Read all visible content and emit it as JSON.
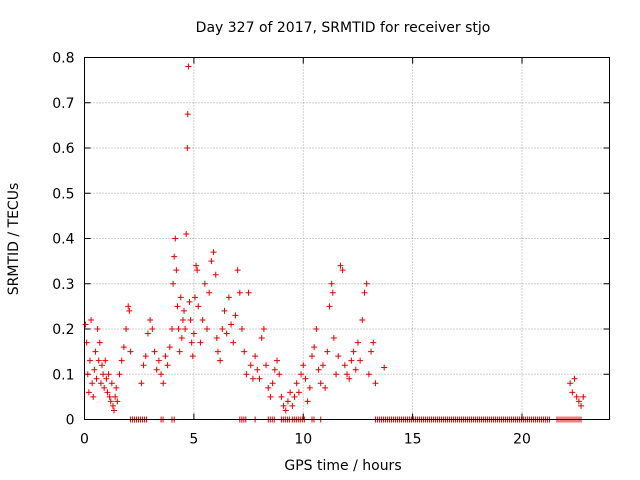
{
  "chart_data": {
    "type": "scatter",
    "title": "Day 327 of 2017, SRMTID for receiver stjo",
    "xlabel": "GPS time / hours",
    "ylabel": "SRMTID / TECUs",
    "xlim": [
      0,
      24
    ],
    "ylim": [
      0,
      0.8
    ],
    "xticks": [
      "0",
      "5",
      "10",
      "15",
      "20"
    ],
    "yticks": [
      "0",
      "0.1",
      "0.2",
      "0.3",
      "0.4",
      "0.5",
      "0.6",
      "0.7",
      "0.8"
    ],
    "grid": true,
    "legend": "none",
    "marker": "plus",
    "color": "#e00000",
    "series": [
      {
        "name": "SRMTID",
        "points": [
          [
            0.05,
            0.21
          ],
          [
            0.1,
            0.17
          ],
          [
            0.15,
            0.1
          ],
          [
            0.2,
            0.06
          ],
          [
            0.25,
            0.13
          ],
          [
            0.3,
            0.22
          ],
          [
            0.35,
            0.08
          ],
          [
            0.4,
            0.05
          ],
          [
            0.45,
            0.11
          ],
          [
            0.5,
            0.15
          ],
          [
            0.55,
            0.09
          ],
          [
            0.6,
            0.2
          ],
          [
            0.65,
            0.13
          ],
          [
            0.7,
            0.17
          ],
          [
            0.75,
            0.08
          ],
          [
            0.8,
            0.12
          ],
          [
            0.85,
            0.1
          ],
          [
            0.9,
            0.07
          ],
          [
            0.95,
            0.13
          ],
          [
            1.0,
            0.09
          ],
          [
            1.05,
            0.06
          ],
          [
            1.1,
            0.1
          ],
          [
            1.15,
            0.05
          ],
          [
            1.2,
            0.04
          ],
          [
            1.25,
            0.08
          ],
          [
            1.3,
            0.03
          ],
          [
            1.35,
            0.02
          ],
          [
            1.4,
            0.05
          ],
          [
            1.45,
            0.07
          ],
          [
            1.5,
            0.04
          ],
          [
            1.6,
            0.1
          ],
          [
            1.7,
            0.13
          ],
          [
            1.8,
            0.16
          ],
          [
            1.9,
            0.2
          ],
          [
            2.0,
            0.25
          ],
          [
            2.05,
            0.24
          ],
          [
            2.1,
            0.15
          ],
          [
            2.6,
            0.08
          ],
          [
            2.7,
            0.12
          ],
          [
            2.8,
            0.14
          ],
          [
            2.9,
            0.19
          ],
          [
            3.0,
            0.22
          ],
          [
            3.1,
            0.2
          ],
          [
            3.2,
            0.15
          ],
          [
            3.3,
            0.11
          ],
          [
            3.4,
            0.13
          ],
          [
            3.5,
            0.1
          ],
          [
            3.6,
            0.08
          ],
          [
            3.7,
            0.14
          ],
          [
            3.8,
            0.12
          ],
          [
            3.9,
            0.16
          ],
          [
            4.0,
            0.2
          ],
          [
            4.05,
            0.3
          ],
          [
            4.1,
            0.36
          ],
          [
            4.15,
            0.4
          ],
          [
            4.2,
            0.33
          ],
          [
            4.25,
            0.25
          ],
          [
            4.3,
            0.2
          ],
          [
            4.35,
            0.15
          ],
          [
            4.4,
            0.27
          ],
          [
            4.45,
            0.18
          ],
          [
            4.5,
            0.22
          ],
          [
            4.55,
            0.24
          ],
          [
            4.6,
            0.2
          ],
          [
            4.65,
            0.41
          ],
          [
            4.7,
            0.6
          ],
          [
            4.72,
            0.675
          ],
          [
            4.75,
            0.78
          ],
          [
            4.8,
            0.26
          ],
          [
            4.85,
            0.22
          ],
          [
            4.9,
            0.17
          ],
          [
            4.95,
            0.14
          ],
          [
            5.0,
            0.19
          ],
          [
            5.05,
            0.27
          ],
          [
            5.1,
            0.34
          ],
          [
            5.15,
            0.33
          ],
          [
            5.2,
            0.25
          ],
          [
            5.3,
            0.17
          ],
          [
            5.4,
            0.22
          ],
          [
            5.5,
            0.3
          ],
          [
            5.6,
            0.2
          ],
          [
            5.7,
            0.28
          ],
          [
            5.8,
            0.35
          ],
          [
            5.9,
            0.37
          ],
          [
            6.0,
            0.32
          ],
          [
            6.05,
            0.18
          ],
          [
            6.1,
            0.15
          ],
          [
            6.2,
            0.13
          ],
          [
            6.3,
            0.2
          ],
          [
            6.4,
            0.24
          ],
          [
            6.5,
            0.19
          ],
          [
            6.6,
            0.27
          ],
          [
            6.7,
            0.21
          ],
          [
            6.8,
            0.17
          ],
          [
            6.9,
            0.23
          ],
          [
            7.0,
            0.33
          ],
          [
            7.1,
            0.28
          ],
          [
            7.2,
            0.2
          ],
          [
            7.3,
            0.15
          ],
          [
            7.4,
            0.1
          ],
          [
            7.5,
            0.28
          ],
          [
            7.6,
            0.12
          ],
          [
            7.7,
            0.09
          ],
          [
            7.8,
            0.14
          ],
          [
            7.9,
            0.11
          ],
          [
            8.0,
            0.09
          ],
          [
            8.1,
            0.18
          ],
          [
            8.2,
            0.2
          ],
          [
            8.3,
            0.12
          ],
          [
            8.4,
            0.07
          ],
          [
            8.5,
            0.05
          ],
          [
            8.6,
            0.08
          ],
          [
            8.7,
            0.11
          ],
          [
            8.8,
            0.13
          ],
          [
            8.9,
            0.1
          ],
          [
            9.0,
            0.05
          ],
          [
            9.1,
            0.03
          ],
          [
            9.2,
            0.02
          ],
          [
            9.3,
            0.04
          ],
          [
            9.4,
            0.06
          ],
          [
            9.5,
            0.03
          ],
          [
            9.6,
            0.05
          ],
          [
            9.7,
            0.08
          ],
          [
            9.8,
            0.06
          ],
          [
            9.9,
            0.1
          ],
          [
            10.0,
            0.12
          ],
          [
            10.1,
            0.09
          ],
          [
            10.2,
            0.04
          ],
          [
            10.3,
            0.07
          ],
          [
            10.4,
            0.14
          ],
          [
            10.5,
            0.16
          ],
          [
            10.6,
            0.2
          ],
          [
            10.7,
            0.11
          ],
          [
            10.8,
            0.08
          ],
          [
            10.9,
            0.12
          ],
          [
            11.0,
            0.07
          ],
          [
            11.1,
            0.15
          ],
          [
            11.2,
            0.25
          ],
          [
            11.3,
            0.3
          ],
          [
            11.35,
            0.28
          ],
          [
            11.4,
            0.18
          ],
          [
            11.5,
            0.1
          ],
          [
            11.6,
            0.14
          ],
          [
            11.7,
            0.34
          ],
          [
            11.8,
            0.33
          ],
          [
            11.9,
            0.12
          ],
          [
            12.0,
            0.1
          ],
          [
            12.1,
            0.09
          ],
          [
            12.2,
            0.13
          ],
          [
            12.3,
            0.15
          ],
          [
            12.4,
            0.11
          ],
          [
            12.5,
            0.17
          ],
          [
            12.6,
            0.13
          ],
          [
            12.7,
            0.22
          ],
          [
            12.8,
            0.28
          ],
          [
            12.9,
            0.3
          ],
          [
            13.0,
            0.1
          ],
          [
            13.1,
            0.15
          ],
          [
            13.2,
            0.17
          ],
          [
            13.3,
            0.08
          ],
          [
            13.7,
            0.115
          ],
          [
            22.2,
            0.08
          ],
          [
            22.3,
            0.06
          ],
          [
            22.4,
            0.09
          ],
          [
            22.5,
            0.05
          ],
          [
            22.6,
            0.04
          ],
          [
            22.7,
            0.03
          ],
          [
            22.8,
            0.05
          ]
        ]
      }
    ],
    "zero_band": [
      [
        2.1,
        2.9
      ],
      [
        3.5,
        3.6
      ],
      [
        4.0,
        4.0
      ],
      [
        4.1,
        4.1
      ],
      [
        7.1,
        7.4
      ],
      [
        7.8,
        7.8
      ],
      [
        8.4,
        8.7
      ],
      [
        9.0,
        9.4
      ],
      [
        9.5,
        10.1
      ],
      [
        10.4,
        10.5
      ],
      [
        10.8,
        10.8
      ],
      [
        13.3,
        21.3
      ],
      [
        21.6,
        22.7
      ]
    ]
  }
}
